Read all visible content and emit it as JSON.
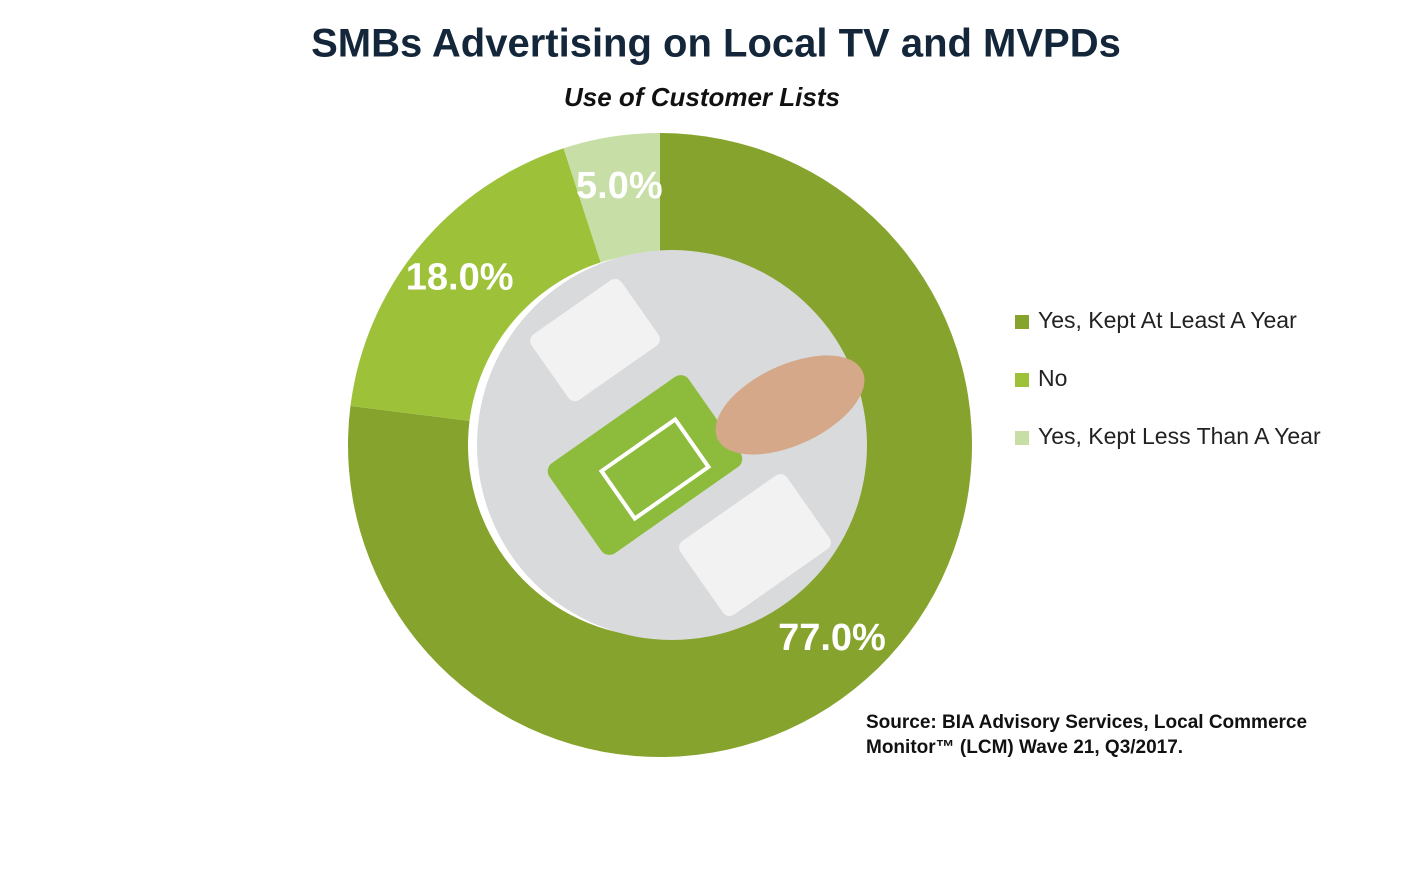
{
  "chart_data": {
    "type": "donut",
    "title": "SMBs Advertising on Local TV and MVPDs",
    "subtitle": "Use of Customer Lists",
    "categories": [
      "Yes, Kept At Least A Year",
      "No",
      "Yes, Kept Less Than A Year"
    ],
    "values": [
      77,
      18,
      5
    ],
    "value_labels": [
      "77.0%",
      "18.0%",
      "5.0%"
    ],
    "colors": [
      "#86a32e",
      "#9dc23a",
      "#c7dea6"
    ],
    "legend": "right",
    "source": "Source: BIA Advisory Services, Local Commerce Monitor™ (LCM) Wave 21, Q3/2017."
  }
}
